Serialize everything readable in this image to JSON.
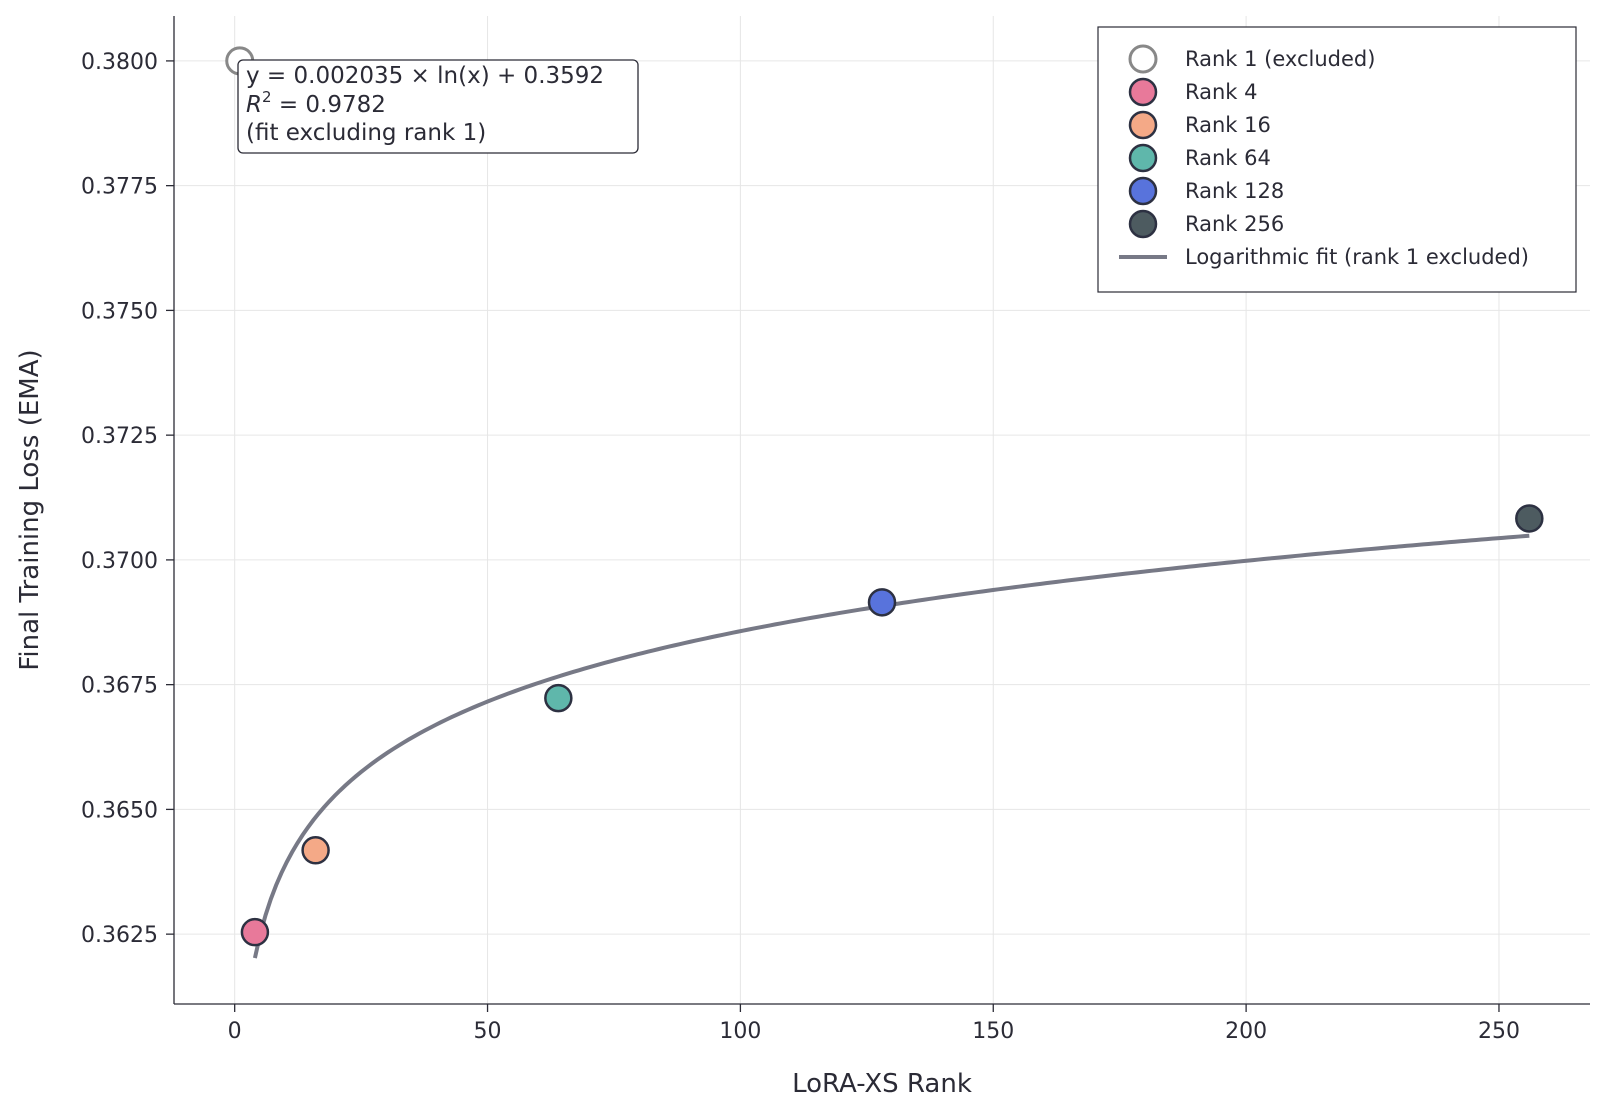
{
  "chart_data": {
    "type": "scatter",
    "xlabel": "LoRA-XS Rank",
    "ylabel": "Final Training Loss (EMA)",
    "xlim": [
      -12,
      268
    ],
    "ylim": [
      0.3611,
      0.3809
    ],
    "xticks": [
      0,
      50,
      100,
      150,
      200,
      250
    ],
    "yticks": [
      0.3625,
      0.365,
      0.3675,
      0.37,
      0.3725,
      0.375,
      0.3775,
      0.38
    ],
    "xtick_labels": [
      "0",
      "50",
      "100",
      "150",
      "200",
      "250"
    ],
    "ytick_labels": [
      "0.3625",
      "0.3650",
      "0.3675",
      "0.3700",
      "0.3725",
      "0.3750",
      "0.3775",
      "0.3800"
    ],
    "grid": true,
    "legend_position": "top-right",
    "series": [
      {
        "name": "Rank 1 (excluded)",
        "x": 1,
        "y": 0.38,
        "fill": "none",
        "edge": "#888888",
        "hollow": true
      },
      {
        "name": "Rank 4",
        "x": 4,
        "y": 0.36254,
        "fill": "#e8799a",
        "edge": "#2d3142"
      },
      {
        "name": "Rank 16",
        "x": 16,
        "y": 0.36418,
        "fill": "#f4a987",
        "edge": "#2d3142"
      },
      {
        "name": "Rank 64",
        "x": 64,
        "y": 0.36723,
        "fill": "#5fb7ab",
        "edge": "#2d3142"
      },
      {
        "name": "Rank 128",
        "x": 128,
        "y": 0.36915,
        "fill": "#5873dc",
        "edge": "#2d3142"
      },
      {
        "name": "Rank 256",
        "x": 256,
        "y": 0.37083,
        "fill": "#4d5b60",
        "edge": "#2d3142"
      }
    ],
    "fit": {
      "name": "Logarithmic fit (rank 1 excluded)",
      "a": 0.002035,
      "b": 0.3592,
      "x_range": [
        4,
        256
      ],
      "color": "#777986"
    },
    "annotation": {
      "line1": "y = 0.002035 × ln(x) + 0.3592",
      "line2_prefix": "R",
      "line2_sup": "2",
      "line2_rest": " = 0.9782",
      "line3": "(fit excluding rank 1)"
    }
  }
}
